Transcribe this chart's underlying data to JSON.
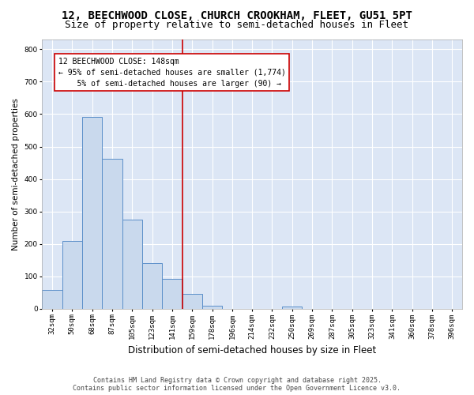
{
  "title": "12, BEECHWOOD CLOSE, CHURCH CROOKHAM, FLEET, GU51 5PT",
  "subtitle": "Size of property relative to semi-detached houses in Fleet",
  "xlabel": "Distribution of semi-detached houses by size in Fleet",
  "ylabel": "Number of semi-detached properties",
  "categories": [
    "32sqm",
    "50sqm",
    "68sqm",
    "87sqm",
    "105sqm",
    "123sqm",
    "141sqm",
    "159sqm",
    "178sqm",
    "196sqm",
    "214sqm",
    "232sqm",
    "250sqm",
    "269sqm",
    "287sqm",
    "305sqm",
    "323sqm",
    "341sqm",
    "360sqm",
    "378sqm",
    "396sqm"
  ],
  "values": [
    57,
    209,
    592,
    462,
    275,
    140,
    93,
    47,
    9,
    0,
    0,
    0,
    8,
    0,
    0,
    0,
    0,
    0,
    0,
    0,
    0
  ],
  "bar_color": "#c9d9ed",
  "bar_edge_color": "#5b8fc9",
  "vline_color": "#cc0000",
  "annotation_line1": "12 BEECHWOOD CLOSE: 148sqm",
  "annotation_line2": "← 95% of semi-detached houses are smaller (1,774)",
  "annotation_line3": "5% of semi-detached houses are larger (90) →",
  "annotation_box_color": "white",
  "annotation_box_edge": "#cc0000",
  "ylim": [
    0,
    830
  ],
  "yticks": [
    0,
    100,
    200,
    300,
    400,
    500,
    600,
    700,
    800
  ],
  "footer": "Contains HM Land Registry data © Crown copyright and database right 2025.\nContains public sector information licensed under the Open Government Licence v3.0.",
  "fig_bg": "#ffffff",
  "plot_bg": "#dce6f5",
  "grid_color": "#ffffff",
  "title_fontsize": 10,
  "subtitle_fontsize": 9,
  "xlabel_fontsize": 8.5,
  "ylabel_fontsize": 7.5,
  "tick_fontsize": 6.5,
  "annot_fontsize": 7,
  "footer_fontsize": 6
}
